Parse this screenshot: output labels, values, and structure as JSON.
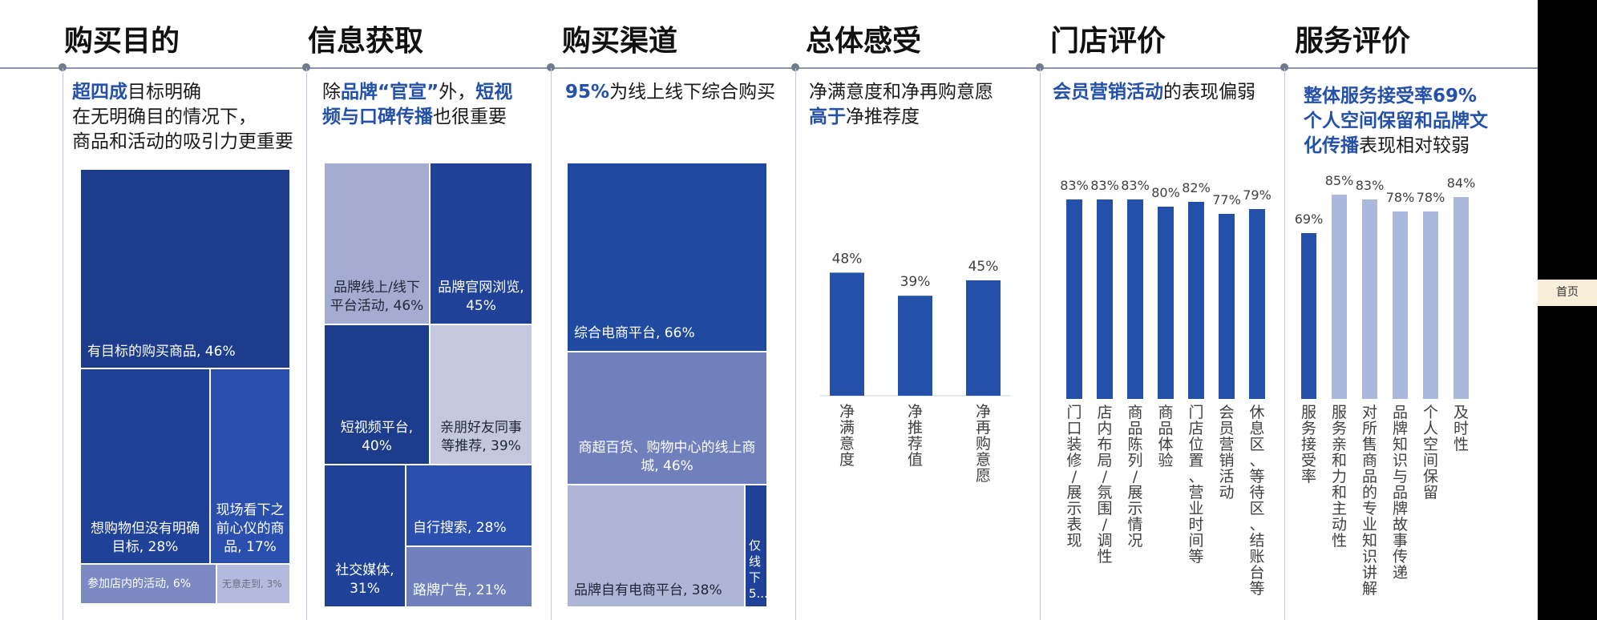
{
  "sections": [
    {
      "title": "购买目的",
      "headline": [
        [
          {
            "t": "超四成",
            "hl": true
          },
          {
            "t": "目标明确"
          }
        ],
        [
          {
            "t": "在无明确目的情况下，"
          }
        ],
        [
          {
            "t": "商品和活动的吸引力更重要"
          }
        ]
      ]
    },
    {
      "title": "信息获取",
      "headline": [
        [
          {
            "t": "除"
          },
          {
            "t": "品牌“官宣”",
            "hl": true
          },
          {
            "t": "外，"
          },
          {
            "t": "短视",
            "hl": true
          }
        ],
        [
          {
            "t": "频与口碑传播",
            "hl": true
          },
          {
            "t": "也很重要"
          }
        ]
      ]
    },
    {
      "title": "购买渠道",
      "headline": [
        [
          {
            "t": "95%",
            "hl": true
          },
          {
            "t": "为线上线下综合购买"
          }
        ]
      ]
    },
    {
      "title": "总体感受",
      "headline": [
        [
          {
            "t": "净满意度和净再购意愿"
          }
        ],
        [
          {
            "t": "高于",
            "hl": true
          },
          {
            "t": "净推荐度"
          }
        ]
      ]
    },
    {
      "title": "门店评价",
      "headline": [
        [
          {
            "t": "会员营销活动",
            "hl": true
          },
          {
            "t": "的表现偏弱"
          }
        ]
      ]
    },
    {
      "title": "服务评价",
      "headline": [
        [
          {
            "t": "整体服务接受率69%",
            "hl": true
          }
        ],
        [
          {
            "t": "个人空间保留和品牌文",
            "hl": true
          }
        ],
        [
          {
            "t": "化传播",
            "hl": true
          },
          {
            "t": "表现相对较弱"
          }
        ]
      ]
    }
  ],
  "colors": {
    "dark_navy": "#1d3c8c",
    "blue": "#2a4fae",
    "mid_blue": "#6f80bc",
    "light_blue": "#aab4d8",
    "pale": "#c4c8de",
    "bar_blue": "#2350a8",
    "bar_light": "#a9b8dc"
  },
  "nav": {
    "home_label": "首页"
  },
  "chart_data": [
    {
      "type": "treemap",
      "title": "购买目的",
      "items": [
        {
          "label": "有目标的购买商品",
          "value": 46,
          "display": "有目标的购买商品, 46%",
          "color": "#1d3c8c"
        },
        {
          "label": "想购物但没有明确目标",
          "value": 28,
          "display": "想购物但没有明确目标, 28%",
          "color": "#1f4298"
        },
        {
          "label": "现场看下之前心仪的商品",
          "value": 17,
          "display": "现场看下之前心仪的商品, 17%",
          "color": "#2a4fae"
        },
        {
          "label": "参加店内的活动",
          "value": 6,
          "display": "参加店内的活动, 6%",
          "color": "#7b8ac2"
        },
        {
          "label": "无意走到",
          "value": 3,
          "display": "无意走到, 3%",
          "color": "#b3bade"
        }
      ]
    },
    {
      "type": "treemap",
      "title": "信息获取",
      "items": [
        {
          "label": "品牌线上/线下平台活动",
          "value": 46,
          "display": "品牌线上/线下平台活动, 46%",
          "color": "#a4acd2"
        },
        {
          "label": "品牌官网浏览",
          "value": 45,
          "display": "品牌官网浏览, 45%",
          "color": "#1f4298"
        },
        {
          "label": "短视频平台",
          "value": 40,
          "display": "短视频平台, 40%",
          "color": "#1d3c8c"
        },
        {
          "label": "亲朋好友同事等推荐",
          "value": 39,
          "display": "亲朋好友同事等推荐, 39%",
          "color": "#c4c8de"
        },
        {
          "label": "社交媒体",
          "value": 31,
          "display": "社交媒体, 31%",
          "color": "#1f4298"
        },
        {
          "label": "自行搜索",
          "value": 28,
          "display": "自行搜索, 28%",
          "color": "#2a4fae"
        },
        {
          "label": "路牌广告",
          "value": 21,
          "display": "路牌广告, 21%",
          "color": "#6f80bc"
        }
      ]
    },
    {
      "type": "treemap",
      "title": "购买渠道",
      "items": [
        {
          "label": "综合电商平台",
          "value": 66,
          "display": "综合电商平台, 66%",
          "color": "#1f4aa0"
        },
        {
          "label": "商超百货、购物中心的线上商城",
          "value": 46,
          "display": "商超百货、购物中心的线上商城, 46%",
          "color": "#6f80bc"
        },
        {
          "label": "品牌自有电商平台",
          "value": 38,
          "display": "品牌自有电商平台, 38%",
          "color": "#aeb6d8"
        },
        {
          "label": "仅线下",
          "value": 5,
          "display": "仅线下 5...",
          "color": "#1f4298"
        }
      ]
    },
    {
      "type": "bar",
      "title": "总体感受",
      "categories": [
        "净满意度",
        "净推荐值",
        "净再购意愿"
      ],
      "values": [
        48,
        39,
        45
      ],
      "value_labels": [
        "48%",
        "39%",
        "45%"
      ],
      "ylim": [
        0,
        100
      ],
      "color": "#2350a8"
    },
    {
      "type": "bar",
      "title": "门店评价",
      "categories": [
        "门口装修/展示表现",
        "店内布局/氛围/调性",
        "商品陈列/展示情况",
        "商品体验",
        "门店位置、营业时间等",
        "会员营销活动",
        "休息区、等待区、结账台等"
      ],
      "values": [
        83,
        83,
        83,
        80,
        82,
        77,
        79
      ],
      "value_labels": [
        "83%",
        "83%",
        "83%",
        "80%",
        "82%",
        "77%",
        "79%"
      ],
      "ylim": [
        0,
        100
      ],
      "color": "#2350a8"
    },
    {
      "type": "bar",
      "title": "服务评价",
      "categories": [
        "服务接受率",
        "服务亲和力和主动性",
        "对所售商品的专业知识讲解",
        "品牌知识与品牌故事传递",
        "个人空间保留",
        "及时性"
      ],
      "values": [
        69,
        85,
        83,
        78,
        78,
        84
      ],
      "value_labels": [
        "69%",
        "85%",
        "83%",
        "78%",
        "78%",
        "84%"
      ],
      "highlight": "服务接受率",
      "ylim": [
        0,
        100
      ],
      "colors": [
        "#2350a8",
        "#a9b8dc",
        "#a9b8dc",
        "#a9b8dc",
        "#a9b8dc",
        "#a9b8dc"
      ]
    }
  ]
}
